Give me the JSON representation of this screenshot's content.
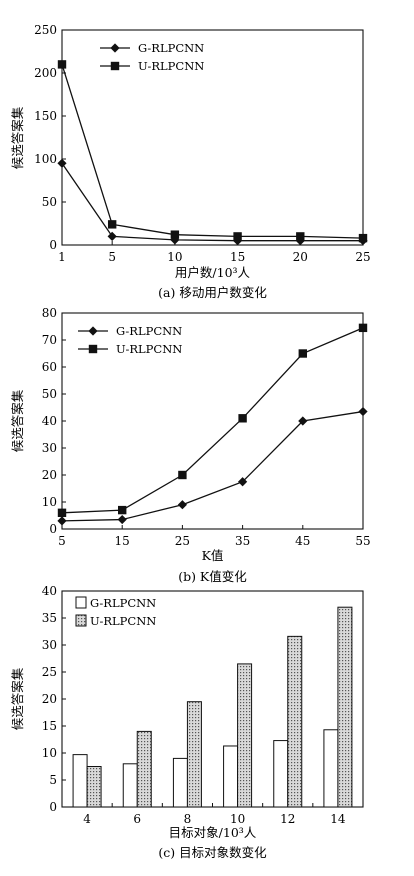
{
  "chart_data": [
    {
      "type": "line",
      "caption": "(a) 移动用户数变化",
      "xlabel": "用户数/10³人",
      "ylabel": "候选答案集",
      "x": [
        1,
        5,
        10,
        15,
        20,
        25
      ],
      "x_ticks": [
        "1",
        "5",
        "10",
        "15",
        "20",
        "25"
      ],
      "ylim": [
        0,
        250
      ],
      "y_ticks": [
        "0",
        "50",
        "100",
        "150",
        "200",
        "250"
      ],
      "legend_position": "top-right",
      "series": [
        {
          "name": "G-RLPCNN",
          "marker": "diamond",
          "values": [
            95,
            10,
            6,
            5,
            5,
            5
          ]
        },
        {
          "name": "U-RLPCNN",
          "marker": "square",
          "values": [
            210,
            24,
            12,
            10,
            10,
            8
          ]
        }
      ]
    },
    {
      "type": "line",
      "caption": "(b) K值变化",
      "xlabel": "K值",
      "ylabel": "候选答案集",
      "x": [
        5,
        15,
        25,
        35,
        45,
        55
      ],
      "x_ticks": [
        "5",
        "15",
        "25",
        "35",
        "45",
        "55"
      ],
      "ylim": [
        0,
        80
      ],
      "y_ticks": [
        "0",
        "10",
        "20",
        "30",
        "40",
        "50",
        "60",
        "70",
        "80"
      ],
      "legend_position": "top-left",
      "series": [
        {
          "name": "G-RLPCNN",
          "marker": "diamond",
          "values": [
            3,
            3.5,
            9,
            17.5,
            40,
            43.5
          ]
        },
        {
          "name": "U-RLPCNN",
          "marker": "square",
          "values": [
            6,
            7,
            20,
            41,
            65,
            74.5
          ]
        }
      ]
    },
    {
      "type": "bar",
      "caption": "(c) 目标对象数变化",
      "xlabel": "目标对象/10³人",
      "ylabel": "候选答案集",
      "categories": [
        "4",
        "6",
        "8",
        "10",
        "12",
        "14"
      ],
      "ylim": [
        0,
        40
      ],
      "y_ticks": [
        "0",
        "5",
        "10",
        "15",
        "20",
        "25",
        "30",
        "35",
        "40"
      ],
      "legend_position": "top-left",
      "series": [
        {
          "name": "G-RLPCNN",
          "fill": "white",
          "values": [
            9.7,
            8,
            9,
            11.3,
            12.3,
            14.3
          ]
        },
        {
          "name": "U-RLPCNN",
          "fill": "dotted-gray",
          "values": [
            7.5,
            14,
            19.5,
            26.5,
            31.6,
            37
          ]
        }
      ]
    }
  ]
}
